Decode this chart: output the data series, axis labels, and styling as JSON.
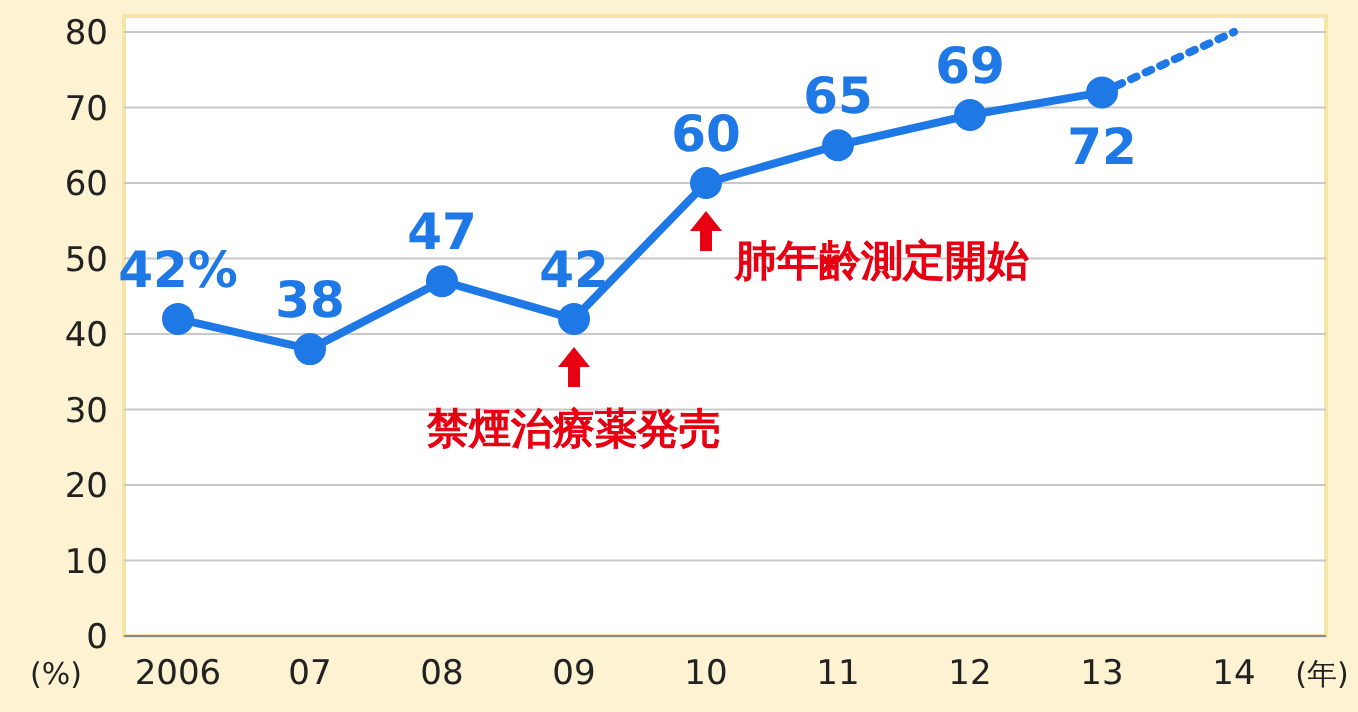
{
  "chart_data": {
    "type": "line",
    "ylabel": "(%)",
    "xlabel": "(年)",
    "categories": [
      "2006",
      "07",
      "08",
      "09",
      "10",
      "11",
      "12",
      "13",
      "14"
    ],
    "ylim": [
      0,
      80
    ],
    "yticks": [
      0,
      10,
      20,
      30,
      40,
      50,
      60,
      70,
      80
    ],
    "grid": "y",
    "series": [
      {
        "color": "#1e78e6",
        "values": [
          42,
          38,
          47,
          42,
          60,
          65,
          69,
          72,
          null
        ],
        "value_labels": [
          "42%",
          "38",
          "47",
          "42",
          "60",
          "65",
          "69",
          "72",
          null
        ],
        "marker": "circle",
        "line_style": "solid"
      },
      {
        "color": "#1e78e6",
        "values": [
          null,
          null,
          null,
          null,
          null,
          null,
          null,
          72,
          80
        ],
        "marker": "none",
        "line_style": "dotted"
      }
    ],
    "annotations": [
      {
        "text": "禁煙治療薬発売",
        "x": "09",
        "y": 42
      },
      {
        "text": "肺年齢測定開始",
        "x": "10",
        "y": 60
      }
    ]
  }
}
